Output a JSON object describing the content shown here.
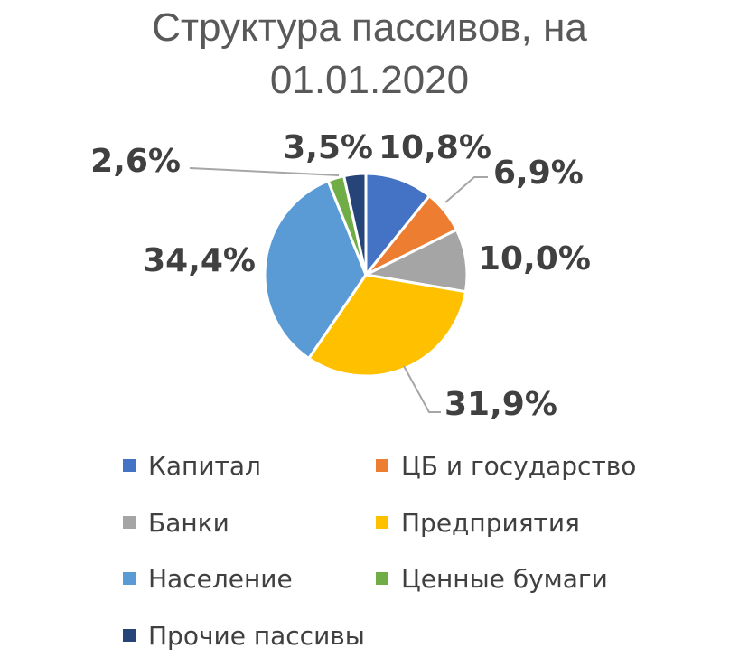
{
  "chart_data": {
    "type": "pie",
    "title_line1": "Структура пассивов, на",
    "title_line2": "01.01.2020",
    "categories": [
      "Капитал",
      "ЦБ и государство",
      "Банки",
      "Предприятия",
      "Население",
      "Ценные бумаги",
      "Прочие пассивы"
    ],
    "values": [
      10.8,
      6.9,
      10.0,
      31.9,
      34.4,
      2.6,
      3.5
    ],
    "labels": [
      "10,8%",
      "6,9%",
      "10,0%",
      "31,9%",
      "34,4%",
      "2,6%",
      "3,5%"
    ],
    "colors": [
      "#4472C4",
      "#ED7D31",
      "#A5A5A5",
      "#FFC000",
      "#5B9BD5",
      "#70AD47",
      "#264478"
    ],
    "legend_position": "bottom"
  }
}
